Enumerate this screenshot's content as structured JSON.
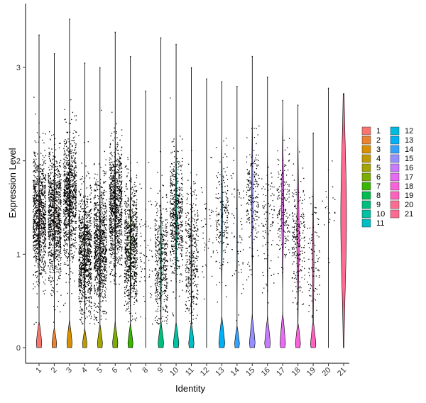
{
  "chart_data": {
    "type": "violin",
    "title": "",
    "xlabel": "Identity",
    "ylabel": "Expression Level",
    "ylim": [
      -0.18,
      3.6
    ],
    "yticks": [
      0,
      1,
      2,
      3
    ],
    "categories": [
      "1",
      "2",
      "3",
      "4",
      "5",
      "6",
      "7",
      "8",
      "9",
      "10",
      "11",
      "12",
      "13",
      "14",
      "15",
      "16",
      "17",
      "18",
      "19",
      "20",
      "21"
    ],
    "colors": [
      "#F8766D",
      "#EA8331",
      "#D89000",
      "#C09B00",
      "#A3A500",
      "#7CAE00",
      "#39B600",
      "#00BB4E",
      "#00BF7D",
      "#00C1A3",
      "#00BFC4",
      "#00BAE0",
      "#00B0F6",
      "#35A2FF",
      "#9590FF",
      "#C77CFF",
      "#E76BF3",
      "#FA62DB",
      "#FF62BC",
      "#FF6C91",
      "#FF6C91"
    ],
    "max_values": [
      3.35,
      3.15,
      3.52,
      3.05,
      3.0,
      3.38,
      3.12,
      2.75,
      3.32,
      3.25,
      3.0,
      2.88,
      2.85,
      2.8,
      3.12,
      2.9,
      2.65,
      2.6,
      2.3,
      2.78,
      2.72
    ],
    "zero_peak_height": [
      0.28,
      0.21,
      0.28,
      0.19,
      0.24,
      0.25,
      0.24,
      0.0,
      0.26,
      0.26,
      0.26,
      0.0,
      0.32,
      0.23,
      0.33,
      0.31,
      0.36,
      0.26,
      0.27,
      0.0,
      0.0
    ],
    "zero_peak_halfwidth": [
      0.45,
      0.4,
      0.43,
      0.38,
      0.42,
      0.45,
      0.42,
      0.0,
      0.45,
      0.45,
      0.43,
      0.0,
      0.47,
      0.4,
      0.45,
      0.45,
      0.42,
      0.4,
      0.41,
      0.0,
      0.0
    ],
    "violin_body": [
      {
        "center": 1.4,
        "spread": 0.45,
        "width": 0.05
      },
      {
        "center": 1.4,
        "spread": 0.45,
        "width": 0.04
      },
      {
        "center": 1.6,
        "spread": 0.45,
        "width": 0.05
      },
      {
        "center": 1.0,
        "spread": 0.45,
        "width": 0.04
      },
      {
        "center": 1.1,
        "spread": 0.45,
        "width": 0.05
      },
      {
        "center": 1.5,
        "spread": 0.45,
        "width": 0.06
      },
      {
        "center": 1.1,
        "spread": 0.45,
        "width": 0.05
      },
      {
        "center": 1.0,
        "spread": 0.5,
        "width": 0.0
      },
      {
        "center": 0.9,
        "spread": 0.45,
        "width": 0.06
      },
      {
        "center": 1.4,
        "spread": 0.45,
        "width": 0.09
      },
      {
        "center": 1.0,
        "spread": 0.45,
        "width": 0.05
      },
      {
        "center": 1.2,
        "spread": 0.5,
        "width": 0.0
      },
      {
        "center": 1.4,
        "spread": 0.4,
        "width": 0.1
      },
      {
        "center": 1.2,
        "spread": 0.45,
        "width": 0.04
      },
      {
        "center": 1.6,
        "spread": 0.45,
        "width": 0.08
      },
      {
        "center": 1.3,
        "spread": 0.45,
        "width": 0.06
      },
      {
        "center": 1.5,
        "spread": 0.4,
        "width": 0.15
      },
      {
        "center": 1.2,
        "spread": 0.45,
        "width": 0.16
      },
      {
        "center": 0.9,
        "spread": 0.4,
        "width": 0.1
      },
      {
        "center": 1.5,
        "spread": 0.5,
        "width": 0.0
      },
      {
        "center": 1.4,
        "spread": 0.7,
        "width": 0.4
      }
    ],
    "point_density": [
      900,
      900,
      900,
      900,
      900,
      900,
      800,
      60,
      450,
      550,
      350,
      40,
      180,
      60,
      200,
      90,
      180,
      220,
      90,
      20,
      0
    ],
    "legend": {
      "position": "right",
      "columns": 2
    }
  }
}
